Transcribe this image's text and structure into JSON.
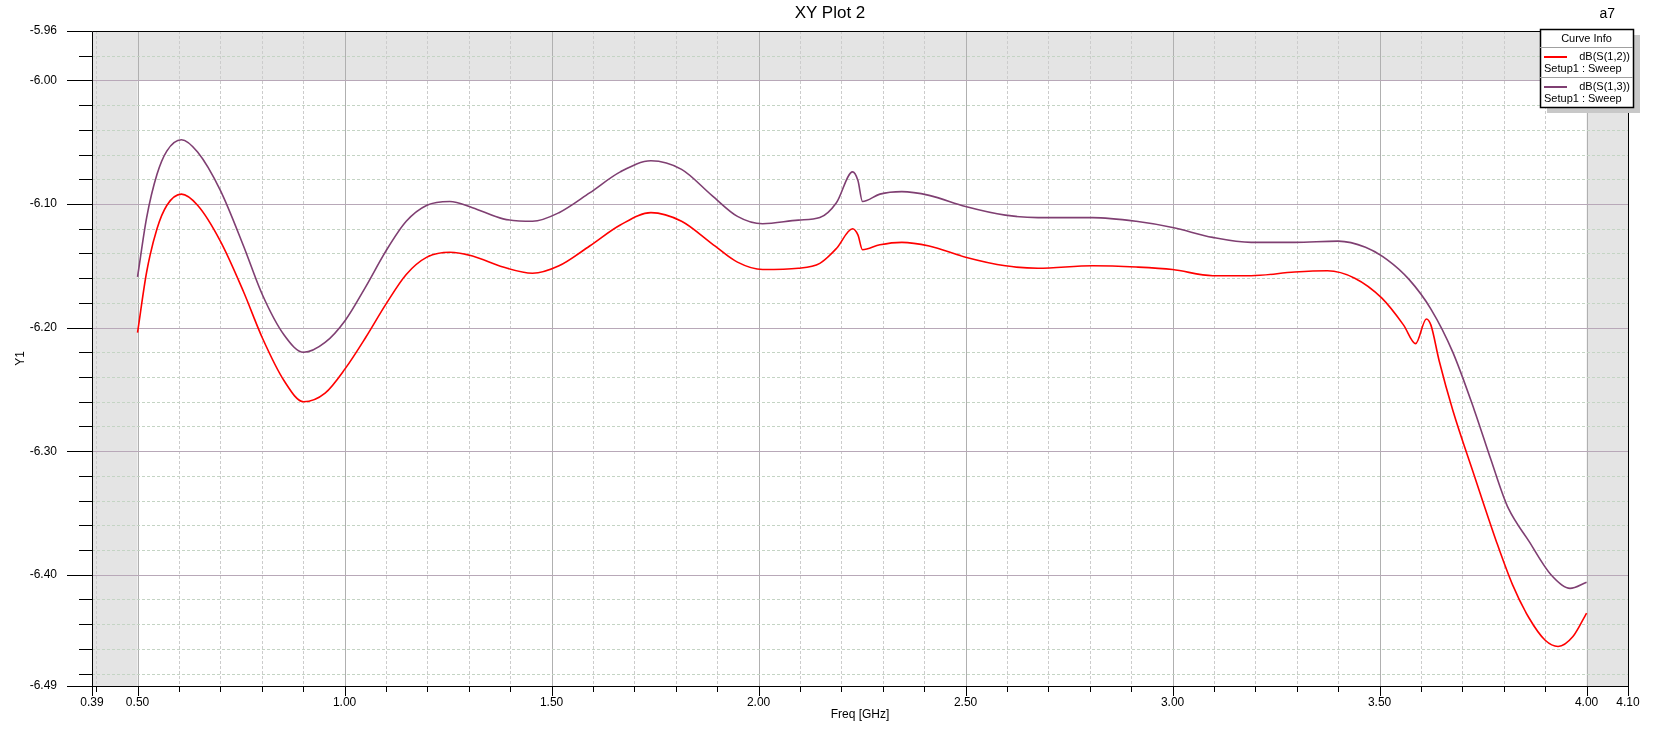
{
  "chart_data": {
    "type": "line",
    "title": "XY Plot 2",
    "xlabel": "Freq [GHz]",
    "ylabel": "Y1",
    "legend_title": "Curve Info",
    "legend": "top right",
    "grid": true,
    "annotations": [
      "a7"
    ],
    "xlim": [
      0.39,
      4.1
    ],
    "ylim": [
      -6.49,
      -5.96
    ],
    "xticks": [
      0.39,
      {
        "value": 0.4,
        "label": null
      },
      {
        "value": 0.5,
        "label": "0.50"
      },
      {
        "value": 0.6,
        "label": null
      },
      {
        "value": 0.7,
        "label": null
      },
      {
        "value": 0.8,
        "label": null
      },
      {
        "value": 0.9,
        "label": null
      },
      {
        "value": 1,
        "label": "1.00"
      },
      {
        "value": 1.1,
        "label": null
      },
      {
        "value": 1.2,
        "label": null
      },
      {
        "value": 1.3,
        "label": null
      },
      {
        "value": 1.4,
        "label": null
      },
      {
        "value": 1.5,
        "label": "1.50"
      },
      {
        "value": 1.6,
        "label": null
      },
      {
        "value": 1.7,
        "label": null
      },
      {
        "value": 1.8,
        "label": null
      },
      {
        "value": 1.9,
        "label": null
      },
      {
        "value": 2,
        "label": "2.00"
      },
      {
        "value": 2.1,
        "label": null
      },
      {
        "value": 2.2,
        "label": null
      },
      {
        "value": 2.3,
        "label": null
      },
      {
        "value": 2.4,
        "label": null
      },
      {
        "value": 2.5,
        "label": "2.50"
      },
      {
        "value": 2.6,
        "label": null
      },
      {
        "value": 2.7,
        "label": null
      },
      {
        "value": 2.8,
        "label": null
      },
      {
        "value": 2.9,
        "label": null
      },
      {
        "value": 3,
        "label": "3.00"
      },
      {
        "value": 3.1,
        "label": null
      },
      {
        "value": 3.2,
        "label": null
      },
      {
        "value": 3.3,
        "label": null
      },
      {
        "value": 3.4,
        "label": null
      },
      {
        "value": 3.5,
        "label": "3.50"
      },
      {
        "value": 3.6,
        "label": null
      },
      {
        "value": 3.7,
        "label": null
      },
      {
        "value": 3.8,
        "label": null
      },
      {
        "value": 3.9,
        "label": null
      },
      {
        "value": 4,
        "label": "4.00"
      },
      {
        "value": 4.1,
        "label": "4.10"
      }
    ],
    "yticks": [
      -5.96,
      {
        "value": -5.98,
        "label": null
      },
      {
        "value": -6,
        "label": "-6.00"
      },
      {
        "value": -6.02,
        "label": null
      },
      {
        "value": -6.04,
        "label": null
      },
      {
        "value": -6.06,
        "label": null
      },
      {
        "value": -6.08,
        "label": null
      },
      {
        "value": -6.1,
        "label": "-6.10"
      },
      {
        "value": -6.12,
        "label": null
      },
      {
        "value": -6.14,
        "label": null
      },
      {
        "value": -6.16,
        "label": null
      },
      {
        "value": -6.18,
        "label": null
      },
      {
        "value": -6.2,
        "label": "-6.20"
      },
      {
        "value": -6.22,
        "label": null
      },
      {
        "value": -6.24,
        "label": null
      },
      {
        "value": -6.26,
        "label": null
      },
      {
        "value": -6.28,
        "label": null
      },
      {
        "value": -6.3,
        "label": "-6.30"
      },
      {
        "value": -6.32,
        "label": null
      },
      {
        "value": -6.34,
        "label": null
      },
      {
        "value": -6.36,
        "label": null
      },
      {
        "value": -6.38,
        "label": null
      },
      {
        "value": -6.4,
        "label": "-6.40"
      },
      {
        "value": -6.42,
        "label": null
      },
      {
        "value": -6.44,
        "label": null
      },
      {
        "value": -6.46,
        "label": null
      },
      {
        "value": -6.48,
        "label": null
      },
      -6.49
    ],
    "bands": [
      {
        "axis": "x",
        "from": 0.39,
        "to": 0.5,
        "color": "#e4e4e4"
      },
      {
        "axis": "x",
        "from": 4,
        "to": 4.1,
        "color": "#e4e4e4"
      },
      {
        "axis": "y",
        "from": -6,
        "to": -5.96,
        "color": "#e4e4e4"
      }
    ],
    "series": [
      {
        "name": "dB(S(1,2)) Setup1 : Sweep",
        "color": "#ff0000",
        "x": [
          0.5,
          0.522,
          0.547,
          0.571,
          0.606,
          0.645,
          0.7,
          0.756,
          0.801,
          0.854,
          0.901,
          0.953,
          1.002,
          1.051,
          1.1,
          1.149,
          1.199,
          1.254,
          1.309,
          1.383,
          1.454,
          1.518,
          1.592,
          1.666,
          1.74,
          1.814,
          1.887,
          1.949,
          2.01,
          2.096,
          2.148,
          2.188,
          2.227,
          2.24,
          2.251,
          2.293,
          2.346,
          2.412,
          2.5,
          2.596,
          2.675,
          2.807,
          2.912,
          3,
          3.097,
          3.19,
          3.295,
          3.374,
          3.44,
          3.505,
          3.558,
          3.587,
          3.613,
          3.624,
          3.644,
          3.677,
          3.729,
          3.782,
          3.821,
          3.861,
          3.9,
          3.931,
          3.967,
          4
        ],
        "values": [
          -6.204,
          -6.155,
          -6.12,
          -6.101,
          -6.092,
          -6.101,
          -6.13,
          -6.171,
          -6.208,
          -6.243,
          -6.26,
          -6.253,
          -6.233,
          -6.208,
          -6.181,
          -6.157,
          -6.143,
          -6.139,
          -6.142,
          -6.151,
          -6.156,
          -6.15,
          -6.134,
          -6.117,
          -6.107,
          -6.114,
          -6.132,
          -6.147,
          -6.153,
          -6.152,
          -6.148,
          -6.136,
          -6.12,
          -6.125,
          -6.137,
          -6.133,
          -6.131,
          -6.134,
          -6.143,
          -6.15,
          -6.152,
          -6.15,
          -6.151,
          -6.153,
          -6.158,
          -6.158,
          -6.155,
          -6.154,
          -6.16,
          -6.176,
          -6.198,
          -6.213,
          -6.193,
          -6.198,
          -6.227,
          -6.267,
          -6.32,
          -6.373,
          -6.408,
          -6.435,
          -6.453,
          -6.458,
          -6.45,
          -6.431
        ]
      },
      {
        "name": "dB(S(1,3)) Setup1 : Sweep",
        "color": "#7f3f72",
        "x": [
          0.5,
          0.522,
          0.547,
          0.571,
          0.606,
          0.645,
          0.7,
          0.756,
          0.801,
          0.854,
          0.901,
          0.953,
          1.002,
          1.051,
          1.1,
          1.149,
          1.199,
          1.254,
          1.309,
          1.383,
          1.454,
          1.518,
          1.592,
          1.666,
          1.74,
          1.814,
          1.887,
          1.949,
          2.01,
          2.096,
          2.148,
          2.188,
          2.227,
          2.24,
          2.251,
          2.293,
          2.346,
          2.412,
          2.5,
          2.596,
          2.675,
          2.807,
          2.912,
          3,
          3.097,
          3.19,
          3.295,
          3.4,
          3.466,
          3.518,
          3.571,
          3.624,
          3.677,
          3.729,
          3.769,
          3.808,
          3.861,
          3.914,
          3.96,
          4
        ],
        "values": [
          -6.159,
          -6.111,
          -6.076,
          -6.057,
          -6.048,
          -6.058,
          -6.089,
          -6.134,
          -6.173,
          -6.206,
          -6.22,
          -6.212,
          -6.194,
          -6.167,
          -6.138,
          -6.114,
          -6.101,
          -6.098,
          -6.103,
          -6.112,
          -6.114,
          -6.107,
          -6.091,
          -6.074,
          -6.065,
          -6.072,
          -6.093,
          -6.11,
          -6.116,
          -6.113,
          -6.111,
          -6.099,
          -6.074,
          -6.081,
          -6.098,
          -6.092,
          -6.09,
          -6.093,
          -6.102,
          -6.109,
          -6.111,
          -6.111,
          -6.114,
          -6.119,
          -6.127,
          -6.131,
          -6.131,
          -6.13,
          -6.135,
          -6.145,
          -6.161,
          -6.185,
          -6.22,
          -6.267,
          -6.307,
          -6.344,
          -6.373,
          -6.4,
          -6.411,
          -6.406
        ]
      }
    ]
  }
}
